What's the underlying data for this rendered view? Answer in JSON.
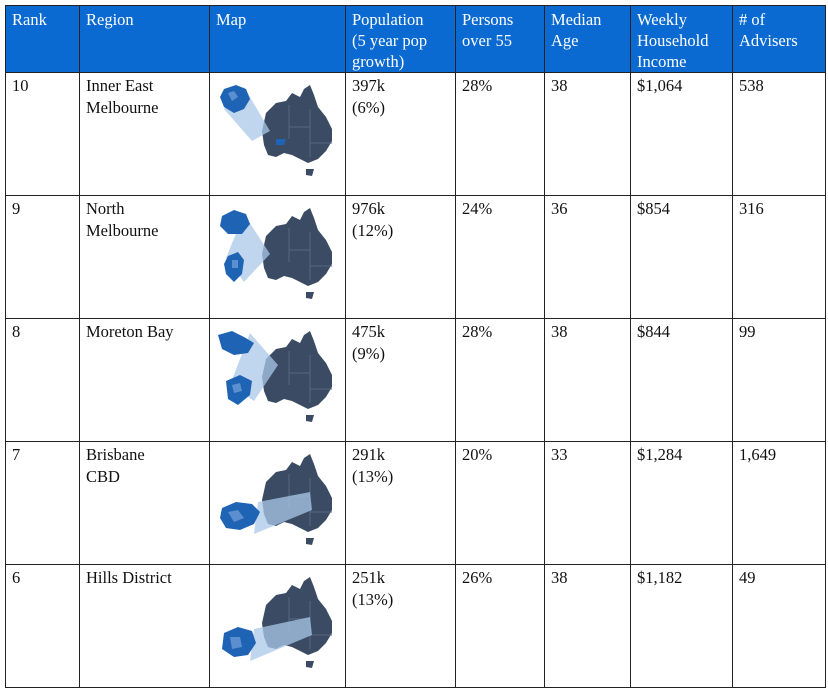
{
  "headers": {
    "rank": [
      "Rank"
    ],
    "region": [
      "Region"
    ],
    "map": [
      "Map"
    ],
    "population": [
      "Population",
      "(5 year pop",
      "growth)"
    ],
    "persons_over_55": [
      "Persons",
      "over 55"
    ],
    "median_age": [
      "Median",
      "Age"
    ],
    "weekly_income": [
      "Weekly",
      "Household",
      "Income"
    ],
    "advisers": [
      "# of",
      "Advisers"
    ]
  },
  "rows": [
    {
      "rank": "10",
      "region": [
        "Inner East",
        "Melbourne"
      ],
      "map_icon": "australia-map-inner-east-melbourne-icon",
      "population": [
        "397k",
        "(6%)"
      ],
      "persons_over_55": "28%",
      "median_age": "38",
      "weekly_income": "$1,064",
      "advisers": "538"
    },
    {
      "rank": "9",
      "region": [
        "North",
        "Melbourne"
      ],
      "map_icon": "australia-map-north-melbourne-icon",
      "population": [
        "976k",
        "(12%)"
      ],
      "persons_over_55": "24%",
      "median_age": "36",
      "weekly_income": "$854",
      "advisers": "316"
    },
    {
      "rank": "8",
      "region": [
        "Moreton Bay"
      ],
      "map_icon": "australia-map-moreton-bay-icon",
      "population": [
        "475k",
        "(9%)"
      ],
      "persons_over_55": "28%",
      "median_age": "38",
      "weekly_income": "$844",
      "advisers": "99"
    },
    {
      "rank": "7",
      "region": [
        "Brisbane",
        "CBD"
      ],
      "map_icon": "australia-map-brisbane-cbd-icon",
      "population": [
        "291k",
        "(13%)"
      ],
      "persons_over_55": "20%",
      "median_age": "33",
      "weekly_income": "$1,284",
      "advisers": "1,649"
    },
    {
      "rank": "6",
      "region": [
        "Hills District"
      ],
      "map_icon": "australia-map-hills-district-icon",
      "population": [
        "251k",
        "(13%)"
      ],
      "persons_over_55": "26%",
      "median_age": "38",
      "weekly_income": "$1,182",
      "advisers": "49"
    }
  ],
  "colors": {
    "header_bg": "#0a6ad1",
    "header_text": "#ffffff",
    "map_dark": "#3a4b63",
    "map_highlight": "#1f63b5"
  }
}
